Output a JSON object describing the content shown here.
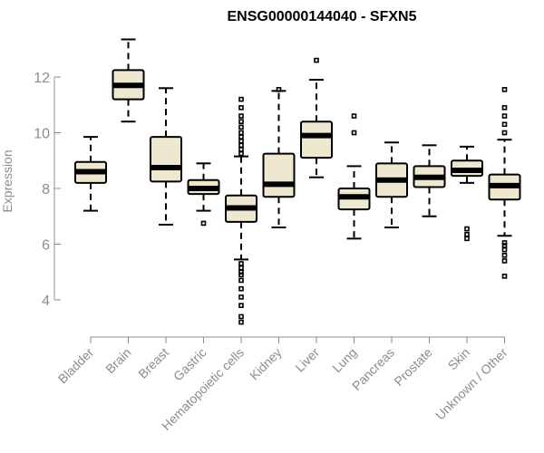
{
  "chart_data": {
    "type": "box",
    "title": "ENSG00000144040 - SFXN5",
    "xlabel": "",
    "ylabel": "Expression",
    "ylim": [
      3.0,
      13.5
    ],
    "yticks": [
      4,
      6,
      8,
      10,
      12
    ],
    "grid": false,
    "colors": {
      "box_fill": "#efe8d1",
      "stroke": "#000000",
      "axis": "#8c8c8c"
    },
    "categories": [
      "Bladder",
      "Brain",
      "Breast",
      "Gastric",
      "Hematopoietic cells",
      "Kidney",
      "Liver",
      "Lung",
      "Pancreas",
      "Prostate",
      "Skin",
      "Unknown / Other"
    ],
    "boxes": [
      {
        "whisker_low": 7.2,
        "q1": 8.2,
        "median": 8.6,
        "q3": 8.95,
        "whisker_high": 9.85,
        "outliers": []
      },
      {
        "whisker_low": 10.4,
        "q1": 11.2,
        "median": 11.7,
        "q3": 12.25,
        "whisker_high": 13.35,
        "outliers": []
      },
      {
        "whisker_low": 6.7,
        "q1": 8.25,
        "median": 8.75,
        "q3": 9.85,
        "whisker_high": 11.6,
        "outliers": []
      },
      {
        "whisker_low": 7.2,
        "q1": 7.8,
        "median": 8.0,
        "q3": 8.3,
        "whisker_high": 8.9,
        "outliers": [
          6.75
        ]
      },
      {
        "whisker_low": 5.45,
        "q1": 6.8,
        "median": 7.3,
        "q3": 7.75,
        "whisker_high": 9.15,
        "outliers": [
          3.2,
          3.4,
          3.8,
          4.1,
          4.4,
          4.7,
          4.9,
          5.0,
          5.15,
          5.3,
          9.25,
          9.4,
          9.55,
          9.7,
          9.85,
          10.0,
          10.2,
          10.4,
          10.6,
          10.9,
          11.2
        ]
      },
      {
        "whisker_low": 6.6,
        "q1": 7.7,
        "median": 8.15,
        "q3": 9.25,
        "whisker_high": 11.5,
        "outliers": [
          11.55
        ]
      },
      {
        "whisker_low": 8.4,
        "q1": 9.1,
        "median": 9.9,
        "q3": 10.4,
        "whisker_high": 11.9,
        "outliers": [
          12.6
        ]
      },
      {
        "whisker_low": 6.2,
        "q1": 7.25,
        "median": 7.7,
        "q3": 8.0,
        "whisker_high": 8.8,
        "outliers": [
          10.0,
          10.6
        ]
      },
      {
        "whisker_low": 6.6,
        "q1": 7.7,
        "median": 8.3,
        "q3": 8.9,
        "whisker_high": 9.65,
        "outliers": []
      },
      {
        "whisker_low": 7.0,
        "q1": 8.05,
        "median": 8.4,
        "q3": 8.8,
        "whisker_high": 9.55,
        "outliers": []
      },
      {
        "whisker_low": 8.2,
        "q1": 8.45,
        "median": 8.65,
        "q3": 9.0,
        "whisker_high": 9.5,
        "outliers": [
          6.2,
          6.35,
          6.55
        ]
      },
      {
        "whisker_low": 6.3,
        "q1": 7.6,
        "median": 8.1,
        "q3": 8.5,
        "whisker_high": 9.75,
        "outliers": [
          4.85,
          5.4,
          5.6,
          5.8,
          5.95,
          6.05,
          10.0,
          10.3,
          10.6,
          10.9,
          11.55
        ]
      }
    ]
  }
}
